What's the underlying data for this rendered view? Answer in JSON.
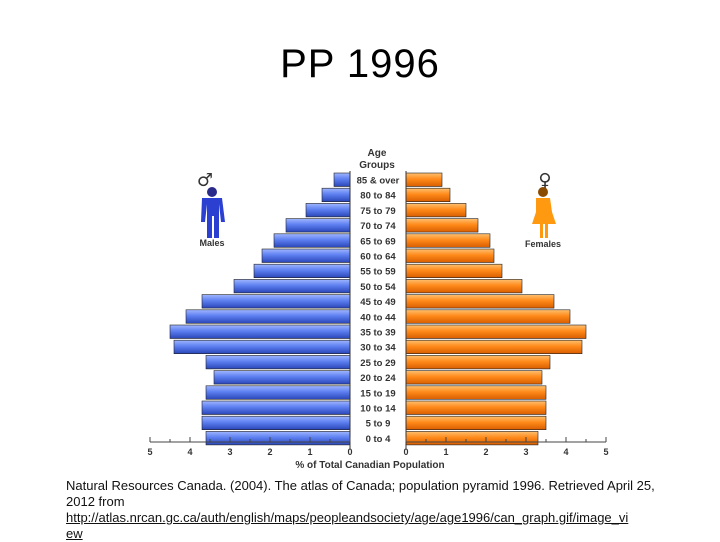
{
  "slide": {
    "title": "PP 1996"
  },
  "citation": {
    "text": "Natural Resources Canada. (2004). The atlas of Canada; population pyramid 1996. Retrieved April 25, 2012 from",
    "link": "http://atlas.nrcan.gc.ca/auth/english/maps/peopleandsociety/age/age1996/can_graph.gif/image_vi",
    "link_tail": "ew"
  },
  "chart_data": {
    "type": "bar",
    "orientation": "horizontal-pyramid",
    "age_header": [
      "Age",
      "Groups"
    ],
    "categories": [
      "85 & over",
      "80 to 84",
      "75 to 79",
      "70 to 74",
      "65 to 69",
      "60 to 64",
      "55 to 59",
      "50 to 54",
      "45 to 49",
      "40 to 44",
      "35 to 39",
      "30 to 34",
      "25 to 29",
      "20 to 24",
      "15 to 19",
      "10 to 14",
      "5 to 9",
      "0 to 4"
    ],
    "series": [
      {
        "name": "Males",
        "color": "#4a6fe0",
        "values": [
          0.4,
          0.7,
          1.1,
          1.6,
          1.9,
          2.2,
          2.4,
          2.9,
          3.7,
          4.1,
          4.5,
          4.4,
          3.6,
          3.4,
          3.6,
          3.7,
          3.7,
          3.6
        ]
      },
      {
        "name": "Females",
        "color": "#ff8a1a",
        "values": [
          0.9,
          1.1,
          1.5,
          1.8,
          2.1,
          2.2,
          2.4,
          2.9,
          3.7,
          4.1,
          4.5,
          4.4,
          3.6,
          3.4,
          3.5,
          3.5,
          3.5,
          3.3
        ]
      }
    ],
    "xlabel": "% of Total Canadian Population",
    "xlim": [
      0,
      5
    ],
    "male_ticks": [
      "5",
      "4",
      "3",
      "2",
      "1",
      "0"
    ],
    "female_ticks": [
      "0",
      "1",
      "2",
      "3",
      "4",
      "5"
    ],
    "male_symbol": "♂",
    "female_symbol": "♀"
  }
}
